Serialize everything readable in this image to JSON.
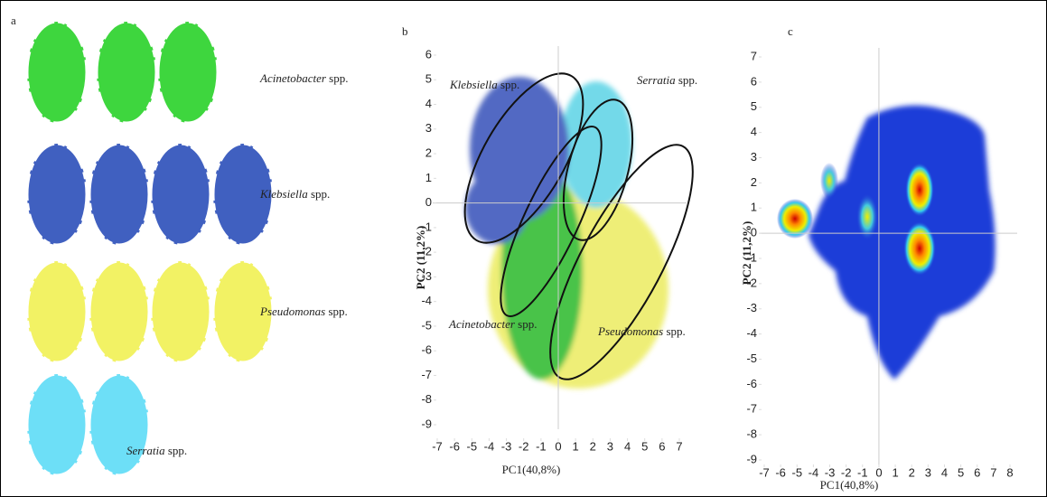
{
  "panel_a": {
    "letter": "a",
    "labels": [
      {
        "genus": "Acinetobacter",
        "suffix": "spp."
      },
      {
        "genus": "Klebsiella",
        "suffix": "spp."
      },
      {
        "genus": "Pseudomonas",
        "suffix": "spp."
      },
      {
        "genus": "Serratia",
        "suffix": "spp."
      }
    ]
  },
  "chart_data": [
    {
      "type": "scatter",
      "letter": "b",
      "x_label": "PC1(40,8%)",
      "y_label": "PC2 (11,2%)",
      "xlim": [
        -7,
        7
      ],
      "xticks": [
        -7,
        -6,
        -5,
        -4,
        -3,
        -2,
        -1,
        0,
        1,
        2,
        3,
        4,
        5,
        6,
        7
      ],
      "ylim": [
        -9,
        6
      ],
      "yticks": [
        -9,
        -8,
        -7,
        -6,
        -5,
        -4,
        -3,
        -2,
        -1,
        0,
        1,
        2,
        3,
        4,
        5,
        6
      ],
      "annotations": [
        {
          "genus": "Klebsiella",
          "suffix": "spp."
        },
        {
          "genus": "Serratia",
          "suffix": "spp."
        },
        {
          "genus": "Acinetobacter",
          "suffix": "spp."
        },
        {
          "genus": "Pseudomonas",
          "suffix": "spp."
        }
      ]
    },
    {
      "type": "scatter",
      "letter": "c",
      "x_label": "PC1(40,8%)",
      "y_label": "PC2 (11,2%)",
      "xlim": [
        -7,
        8
      ],
      "xticks": [
        -7,
        -6,
        -5,
        -4,
        -3,
        -2,
        -1,
        0,
        1,
        2,
        3,
        4,
        5,
        6,
        7,
        8
      ],
      "ylim": [
        -9,
        7
      ],
      "yticks": [
        -9,
        -8,
        -7,
        -6,
        -5,
        -4,
        -3,
        -2,
        -1,
        0,
        1,
        2,
        3,
        4,
        5,
        6,
        7
      ]
    }
  ]
}
